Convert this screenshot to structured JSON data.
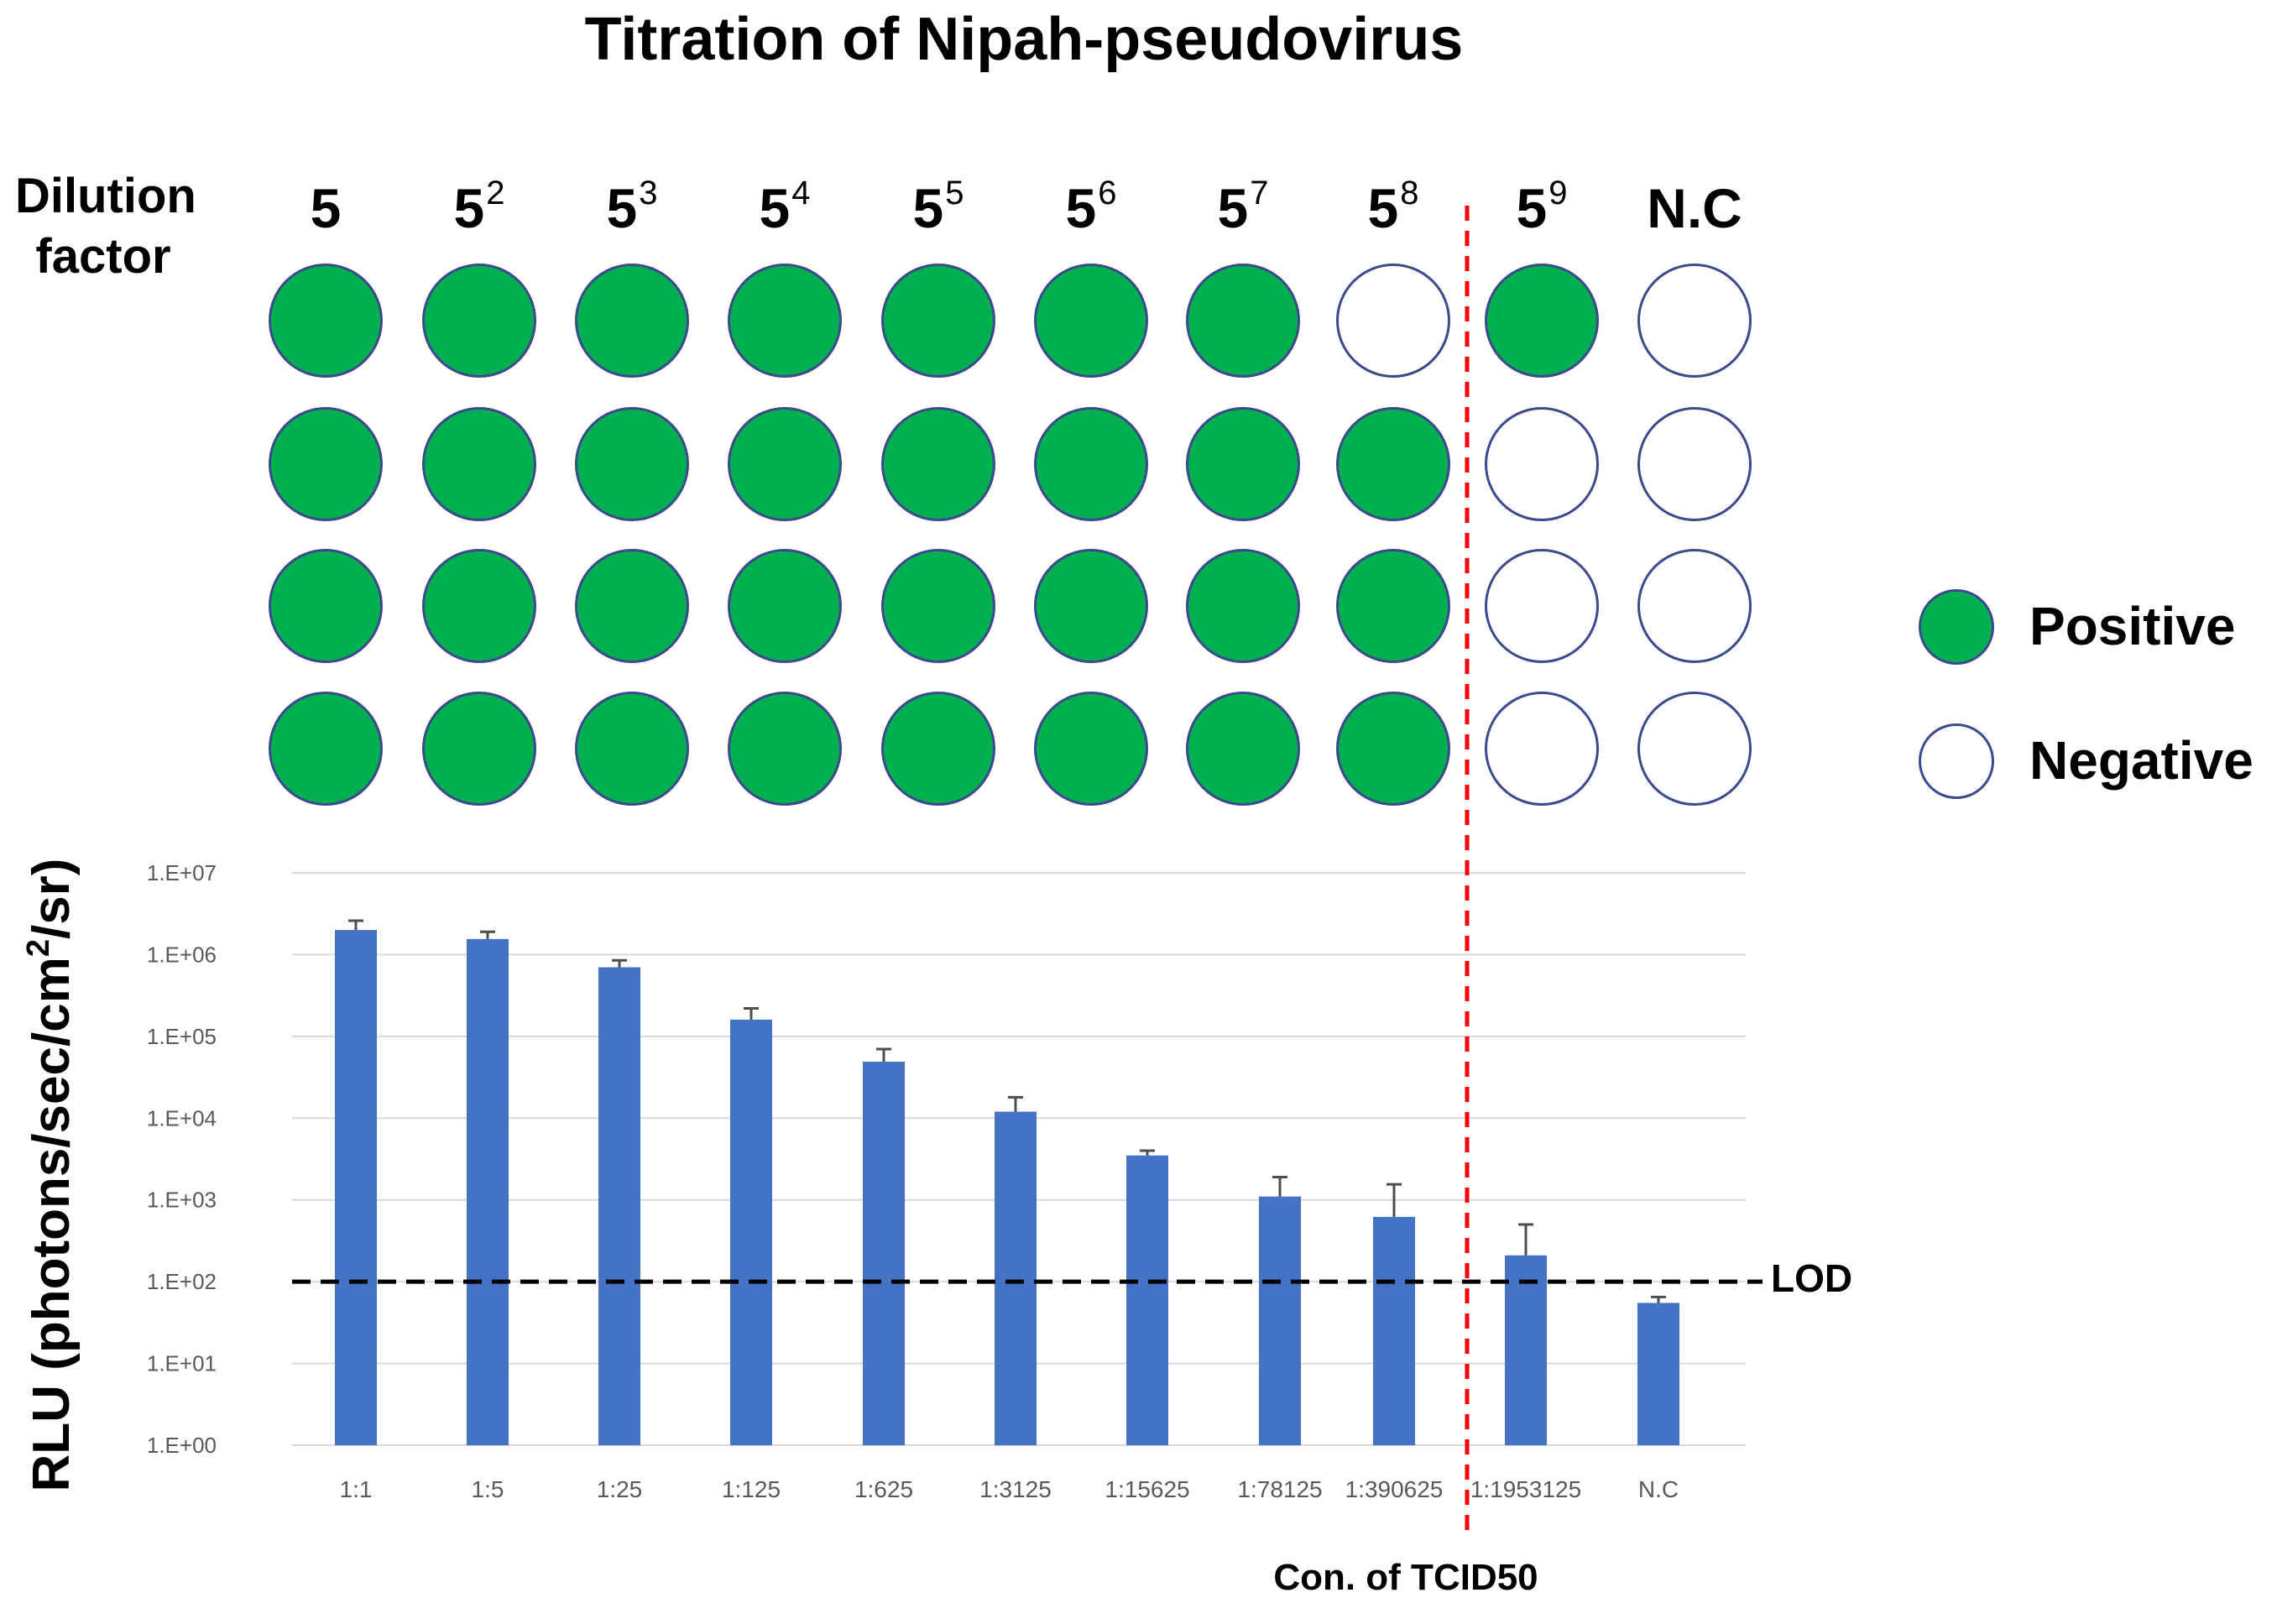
{
  "title": "Titration of Nipah-pseudovirus",
  "dilution_label": "Dilution factor",
  "columns": [
    {
      "base": "5",
      "exp": ""
    },
    {
      "base": "5",
      "exp": "2"
    },
    {
      "base": "5",
      "exp": "3"
    },
    {
      "base": "5",
      "exp": "4"
    },
    {
      "base": "5",
      "exp": "5"
    },
    {
      "base": "5",
      "exp": "6"
    },
    {
      "base": "5",
      "exp": "7"
    },
    {
      "base": "5",
      "exp": "8"
    },
    {
      "base": "5",
      "exp": "9"
    },
    {
      "base": "N.C",
      "exp": ""
    }
  ],
  "wells": [
    [
      1,
      1,
      1,
      1,
      1,
      1,
      1,
      0,
      1,
      0
    ],
    [
      1,
      1,
      1,
      1,
      1,
      1,
      1,
      1,
      0,
      0
    ],
    [
      1,
      1,
      1,
      1,
      1,
      1,
      1,
      1,
      0,
      0
    ],
    [
      1,
      1,
      1,
      1,
      1,
      1,
      1,
      1,
      0,
      0
    ]
  ],
  "legend": {
    "positive": "Positive",
    "negative": "Negative"
  },
  "colors": {
    "positive": "#00b050",
    "well_border": "#3b4a8c",
    "bar": "#4472c4",
    "cutoff_line": "#ff0000",
    "lod_line": "#000000",
    "grid": "#d9d9d9"
  },
  "chart_data": {
    "type": "bar",
    "title": "",
    "ylabel": "RLU (photons/sec/cm²/sr)",
    "ylabel_main": "RLU (photons/sec/cm",
    "ylabel_sup": "2",
    "ylabel_tail": "/sr)",
    "xlabel": "Con. of TCID50",
    "yscale": "log",
    "ylim": [
      1,
      10000000
    ],
    "yticks": [
      "1.E+00",
      "1.E+01",
      "1.E+02",
      "1.E+03",
      "1.E+04",
      "1.E+05",
      "1.E+06",
      "1.E+07"
    ],
    "categories": [
      "1:1",
      "1:5",
      "1:25",
      "1:125",
      "1:625",
      "1:3125",
      "1:15625",
      "1:78125",
      "1:390625",
      "1:1953125",
      "N.C"
    ],
    "values": [
      2000000,
      1550000,
      700000,
      160000,
      49000,
      12000,
      3500,
      1100,
      620,
      210,
      55
    ],
    "error_upper": [
      2600000,
      1900000,
      850000,
      220000,
      70000,
      18000,
      4000,
      1900,
      1550,
      500,
      65
    ],
    "grid": true,
    "lod": {
      "label": "LOD",
      "value": 100
    }
  }
}
